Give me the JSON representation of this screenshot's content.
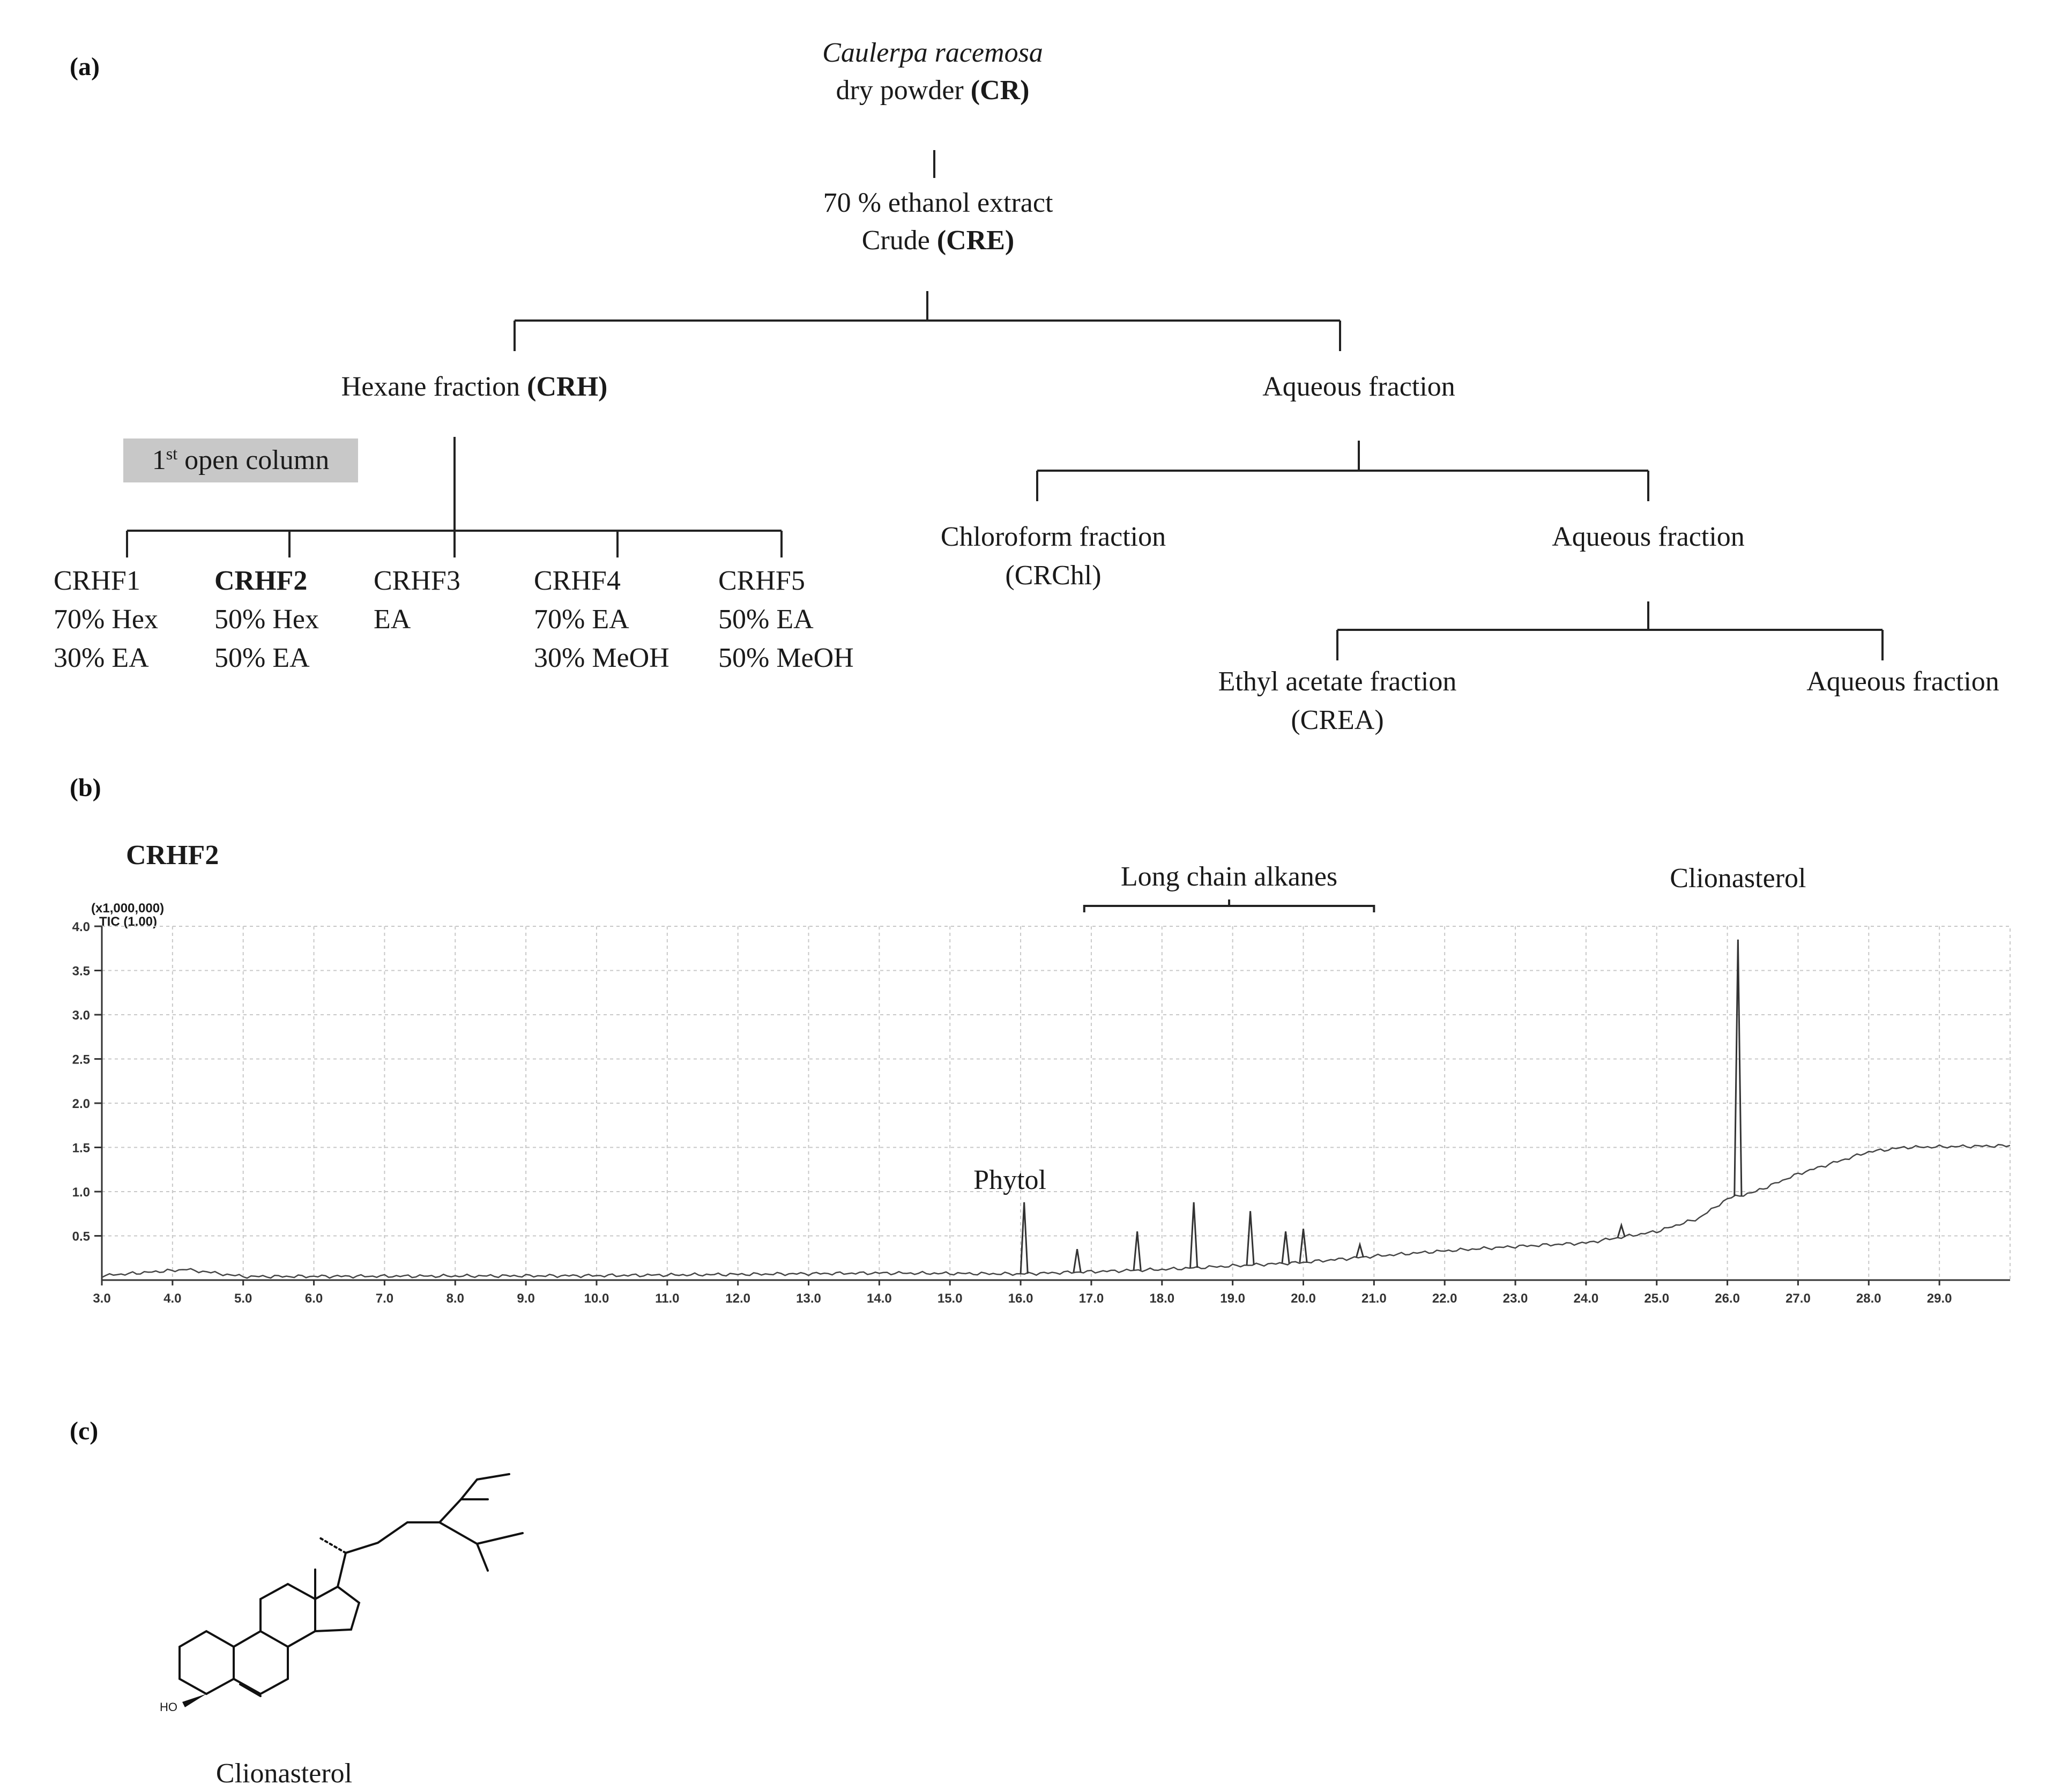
{
  "panels": {
    "a": "(a)",
    "b": "(b)",
    "c": "(c)"
  },
  "flowchart": {
    "source_species": "Caulerpa racemosa",
    "source_line2": "dry powder ",
    "source_code": "(CR)",
    "extract_line1": "70 % ethanol extract",
    "extract_line2": "Crude ",
    "extract_code": "(CRE)",
    "hexane_label": "Hexane fraction ",
    "hexane_code": "(CRH)",
    "aqueous_1": "Aqueous fraction",
    "open_column_1": "1",
    "open_column_sup": "st",
    "open_column_2": " open column",
    "chloroform_line1": "Chloroform fraction",
    "chloroform_line2": "(CRChl)",
    "aqueous_2": "Aqueous fraction",
    "ethyl_line1": "Ethyl acetate fraction",
    "ethyl_line2": "(CREA)",
    "aqueous_3": "Aqueous fraction",
    "subfractions": [
      {
        "name": "CRHF1",
        "line1": "70% Hex",
        "line2": "30% EA",
        "bold": false
      },
      {
        "name": "CRHF2",
        "line1": "50% Hex",
        "line2": "50% EA",
        "bold": true
      },
      {
        "name": "CRHF3",
        "line1": "EA",
        "line2": "",
        "bold": false
      },
      {
        "name": "CRHF4",
        "line1": "70% EA",
        "line2": "30% MeOH",
        "bold": false
      },
      {
        "name": "CRHF5",
        "line1": "50% EA",
        "line2": "50% MeOH",
        "bold": false
      }
    ]
  },
  "chart_data": {
    "type": "line",
    "title": "CRHF2",
    "y_multiplier_label": "(x1,000,000)",
    "trace_label": "TIC (1.00)",
    "xlabel": "",
    "ylabel": "",
    "xlim": [
      3.0,
      30.0
    ],
    "ylim": [
      0.0,
      4.0
    ],
    "x_ticks": [
      "3.0",
      "4.0",
      "5.0",
      "6.0",
      "7.0",
      "8.0",
      "9.0",
      "10.0",
      "11.0",
      "12.0",
      "13.0",
      "14.0",
      "15.0",
      "16.0",
      "17.0",
      "18.0",
      "19.0",
      "20.0",
      "21.0",
      "22.0",
      "23.0",
      "24.0",
      "25.0",
      "26.0",
      "27.0",
      "28.0",
      "29.0"
    ],
    "y_ticks": [
      "0.5",
      "1.0",
      "1.5",
      "2.0",
      "2.5",
      "3.0",
      "3.5",
      "4.0"
    ],
    "baseline": [
      [
        3.0,
        0.05
      ],
      [
        4.2,
        0.12
      ],
      [
        5.0,
        0.04
      ],
      [
        10.0,
        0.05
      ],
      [
        14.0,
        0.08
      ],
      [
        16.0,
        0.07
      ],
      [
        18.0,
        0.12
      ],
      [
        20.0,
        0.2
      ],
      [
        21.0,
        0.27
      ],
      [
        22.0,
        0.33
      ],
      [
        23.0,
        0.38
      ],
      [
        24.0,
        0.42
      ],
      [
        25.0,
        0.55
      ],
      [
        25.6,
        0.7
      ],
      [
        26.0,
        0.92
      ],
      [
        26.4,
        1.0
      ],
      [
        27.0,
        1.2
      ],
      [
        28.0,
        1.45
      ],
      [
        28.5,
        1.5
      ],
      [
        30.0,
        1.52
      ]
    ],
    "peaks": [
      {
        "x": 16.05,
        "y": 0.88
      },
      {
        "x": 16.8,
        "y": 0.35
      },
      {
        "x": 17.65,
        "y": 0.55
      },
      {
        "x": 18.45,
        "y": 0.88
      },
      {
        "x": 19.25,
        "y": 0.78
      },
      {
        "x": 19.75,
        "y": 0.55
      },
      {
        "x": 20.0,
        "y": 0.58
      },
      {
        "x": 20.8,
        "y": 0.4
      },
      {
        "x": 24.5,
        "y": 0.62
      },
      {
        "x": 26.15,
        "y": 3.85
      }
    ],
    "annotations": [
      {
        "text": "Phytol",
        "x": 16.0
      },
      {
        "text": "Long chain alkanes",
        "x_start": 16.9,
        "x_end": 21.0
      },
      {
        "text": "Clionasterol",
        "x": 26.15
      }
    ]
  },
  "structure": {
    "hydroxyl_label": "HO",
    "compound_name": "Clionasterol"
  }
}
